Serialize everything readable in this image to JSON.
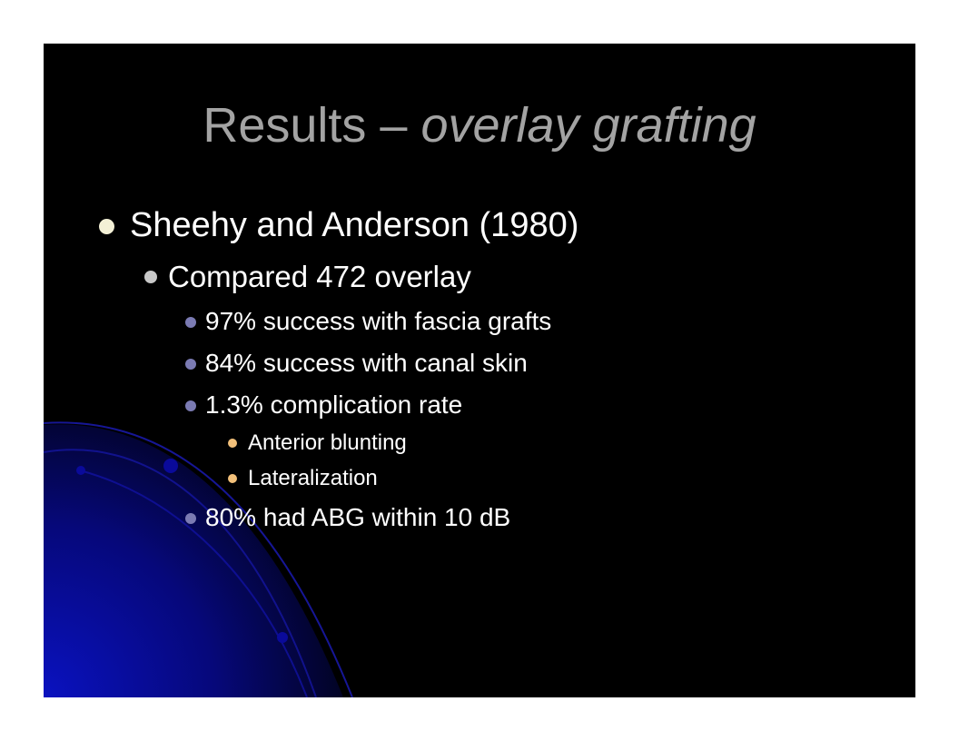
{
  "slide": {
    "title_main": "Results – ",
    "title_italic": "overlay grafting",
    "bullets": {
      "b1": "Sheehy and Anderson (1980)",
      "b2": "Compared 472 overlay",
      "b3": "97% success with fascia grafts",
      "b4": "84% success with canal skin",
      "b5": "1.3% complication rate",
      "b6": "Anterior blunting",
      "b7": "Lateralization",
      "b8": "80% had ABG within 10 dB"
    },
    "colors": {
      "background": "#000000",
      "title": "#a3a3a3",
      "text": "#ffffff",
      "bullet_level1": "#f3f0d6",
      "bullet_level2": "#c8c8c8",
      "bullet_level3": "#7b7bb3",
      "bullet_level4": "#f2c07a",
      "accent_blue": "#0a10b0"
    }
  }
}
